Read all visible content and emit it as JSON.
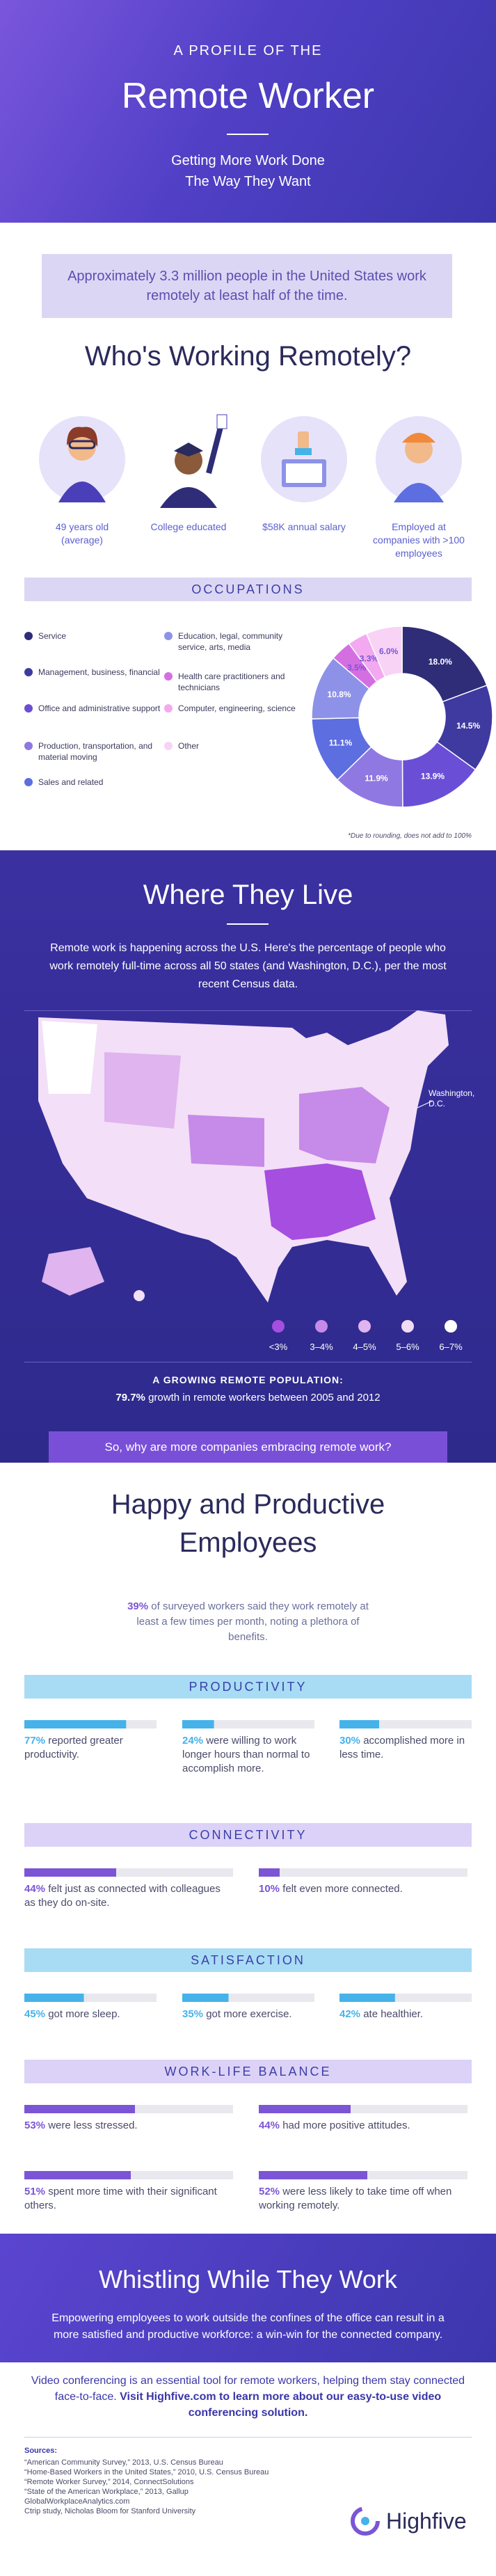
{
  "header": {
    "kicker": "A PROFILE OF THE",
    "title": "Remote Worker",
    "subtitle": [
      "Getting More Work Done",
      "The Way They Want"
    ]
  },
  "intro": "Approximately 3.3 million people in the United States work remotely at least half of the time.",
  "who": {
    "title": "Who's Working Remotely?",
    "profile": [
      "49 years old (average)",
      "College educated",
      "$58K annual salary",
      "Employed at companies with >100 employees"
    ]
  },
  "chart_data": {
    "type": "donut",
    "title": "OCCUPATIONS",
    "categories": [
      "Service",
      "Management, business, financial",
      "Office and administrative support",
      "Production, transportation, and material moving",
      "Sales and related",
      "Education, legal, community service, arts, media",
      "Health care practitioners and technicians",
      "Computer, engineering, science",
      "Other"
    ],
    "values": [
      18.0,
      14.5,
      13.9,
      11.9,
      11.1,
      10.8,
      3.5,
      3.3,
      6.0
    ],
    "value_labels": [
      "18.0%",
      "14.5%",
      "13.9%",
      "11.9%",
      "11.1%",
      "10.8%",
      "3.5%",
      "3.3%",
      "6.0%"
    ],
    "colors": [
      "#2f2c78",
      "#3f3aa0",
      "#6a4fd6",
      "#8f78e2",
      "#5c6ee0",
      "#8d92e8",
      "#d46fe2",
      "#f2a9f0",
      "#f8d3f6"
    ],
    "footnote": "*Due to rounding, does not add to 100%"
  },
  "where": {
    "title": "Where They Live",
    "text": "Remote work is happening across the U.S. Here's the percentage of people who work remotely full-time across all 50 states (and Washington, D.C.), per the most recent Census data.",
    "dc_label": "Washington, D.C.",
    "legend": [
      {
        "label": "<3%",
        "color": "#a64ee0"
      },
      {
        "label": "3–4%",
        "color": "#c68ae9"
      },
      {
        "label": "4–5%",
        "color": "#dfb4ef"
      },
      {
        "label": "5–6%",
        "color": "#f1dcf6"
      },
      {
        "label": "6–7%",
        "color": "#ffffff"
      }
    ],
    "growth_heading": "A GROWING REMOTE POPULATION:",
    "growth_value": "79.7%",
    "growth_text": " growth in remote workers between 2005 and 2012",
    "question": "So, why are more companies embracing remote work?"
  },
  "benefits": {
    "title": [
      "Happy and Productive",
      "Employees"
    ],
    "lead_value": "39%",
    "lead_text": " of surveyed workers said they work remotely at least a few times per month, noting a plethora of benefits.",
    "sections": [
      {
        "heading": "PRODUCTIVITY",
        "band": "#a8dcf5",
        "color": "#45b2ea",
        "items": [
          {
            "value": 77,
            "label": "77%",
            "text": " reported greater productivity."
          },
          {
            "value": 24,
            "label": "24%",
            "text": " were willing to work longer hours than normal to accomplish more."
          },
          {
            "value": 30,
            "label": "30%",
            "text": " accomplished more in less time."
          }
        ]
      },
      {
        "heading": "CONNECTIVITY",
        "band": "#dcd2f7",
        "color": "#7b55d6",
        "items": [
          {
            "value": 44,
            "label": "44%",
            "text": " felt just as connected with colleagues as they do on-site."
          },
          {
            "value": 10,
            "label": "10%",
            "text": " felt even more connected."
          }
        ]
      },
      {
        "heading": "SATISFACTION",
        "band": "#a8dcf5",
        "color": "#45b2ea",
        "items": [
          {
            "value": 45,
            "label": "45%",
            "text": " got more sleep."
          },
          {
            "value": 35,
            "label": "35%",
            "text": " got more exercise."
          },
          {
            "value": 42,
            "label": "42%",
            "text": " ate healthier."
          }
        ]
      },
      {
        "heading": "WORK-LIFE BALANCE",
        "band": "#dcd2f7",
        "color": "#7b55d6",
        "items": [
          {
            "value": 53,
            "label": "53%",
            "text": " were less stressed."
          },
          {
            "value": 44,
            "label": "44%",
            "text": " had more positive attitudes."
          },
          {
            "value": 51,
            "label": "51%",
            "text": " spent more time with their significant others."
          },
          {
            "value": 52,
            "label": "52%",
            "text": " were less likely to take time off when working remotely."
          }
        ]
      }
    ]
  },
  "closing": {
    "title": "Whistling While They Work",
    "text": "Empowering employees to work outside the confines of the office can result in a more satisfied and productive workforce: a win-win for the connected company.",
    "cta": "Video conferencing is an essential tool for remote workers, helping them stay connected face-to-face. ",
    "cta_bold": "Visit Highfive.com to learn more about our easy-to-use video conferencing solution."
  },
  "sources": {
    "heading": "Sources:",
    "items": [
      "“American Community Survey,” 2013, U.S. Census Bureau",
      "“Home-Based Workers in the United States,” 2010, U.S. Census Bureau",
      "“Remote Worker Survey,” 2014, ConnectSolutions",
      "“State of the American Workplace,” 2013, Gallup",
      "GlobalWorkplaceAnalytics.com",
      "Ctrip study, Nicholas Bloom for Stanford University"
    ]
  },
  "logo": "Highfive"
}
